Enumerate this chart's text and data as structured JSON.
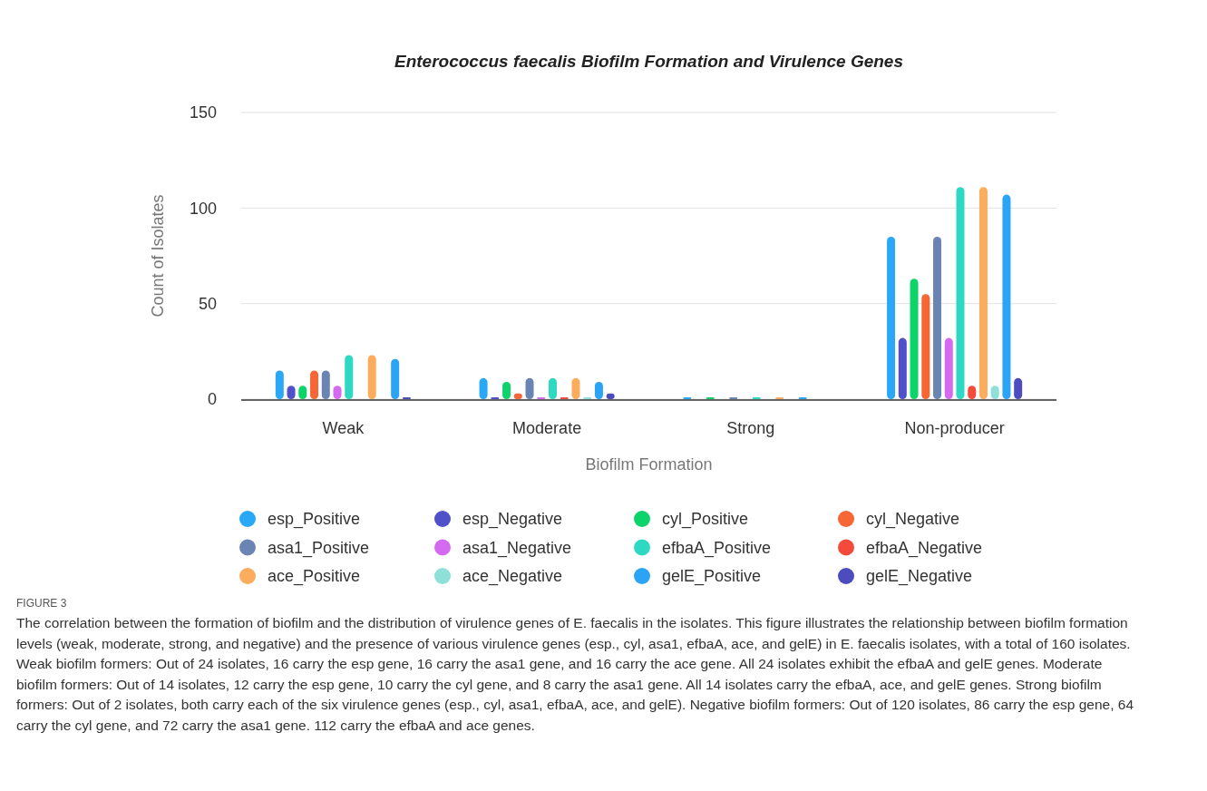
{
  "chart_data": {
    "type": "bar",
    "title": "Enterococcus faecalis Biofilm Formation and Virulence Genes",
    "xlabel": "Biofilm Formation",
    "ylabel": "Count of Isolates",
    "categories": [
      "Weak",
      "Moderate",
      "Strong",
      "Non-producer"
    ],
    "series": [
      {
        "name": "esp_Positive",
        "color": "#2aa8f8",
        "values": [
          15,
          11,
          1,
          85
        ]
      },
      {
        "name": "esp_Negative",
        "color": "#5050c8",
        "values": [
          7,
          1,
          0,
          32
        ]
      },
      {
        "name": "cyl_Positive",
        "color": "#0dd46a",
        "values": [
          7,
          9,
          1,
          63
        ]
      },
      {
        "name": "cyl_Negative",
        "color": "#f76634",
        "values": [
          15,
          3,
          0,
          55
        ]
      },
      {
        "name": "asa1_Positive",
        "color": "#6a84b4",
        "values": [
          15,
          11,
          1,
          85
        ]
      },
      {
        "name": "asa1_Negative",
        "color": "#d36af0",
        "values": [
          7,
          1,
          0,
          32
        ]
      },
      {
        "name": "efbaA_Positive",
        "color": "#2ed9c3",
        "values": [
          23,
          11,
          1,
          111
        ]
      },
      {
        "name": "efbaA_Negative",
        "color": "#f44a3c",
        "values": [
          0,
          1,
          0,
          7
        ]
      },
      {
        "name": "ace_Positive",
        "color": "#fbac5c",
        "values": [
          23,
          11,
          1,
          111
        ]
      },
      {
        "name": "ace_Negative",
        "color": "#8ee0d8",
        "values": [
          0,
          1,
          0,
          7
        ]
      },
      {
        "name": "gelE_Positive",
        "color": "#2ba4f5",
        "values": [
          21,
          9,
          1,
          107
        ]
      },
      {
        "name": "gelE_Negative",
        "color": "#4c4cbf",
        "values": [
          1,
          3,
          0,
          11
        ]
      }
    ],
    "ylim": [
      0,
      150
    ],
    "yticks": [
      0,
      50,
      100,
      150
    ],
    "grid": "y",
    "legend": "bottom",
    "annotations": [
      "FIGURE 3",
      "The correlation between the formation of biofilm and the distribution of virulence genes of E. faecalis in the isolates. This figure illustrates the relationship between biofilm formation levels (weak, moderate, strong, and negative) and the presence of various virulence genes (esp., cyl, asa1, efbaA, ace, and gelE) in E. faecalis isolates, with a total of 160 isolates. Weak biofilm formers: Out of 24 isolates, 16 carry the esp gene, 16 carry the asa1 gene, and 16 carry the ace gene. All 24 isolates exhibit the efbaA and gelE genes. Moderate biofilm formers: Out of 14 isolates, 12 carry the esp gene, 10 carry the cyl gene, and 8 carry the asa1 gene. All 14 isolates carry the efbaA, ace, and gelE genes. Strong biofilm formers: Out of 2 isolates, both carry each of the six virulence genes (esp., cyl, asa1, efbaA, ace, and gelE). Negative biofilm formers: Out of 120 isolates, 86 carry the esp gene, 64 carry the cyl gene, and 72 carry the asa1 gene. 112 carry the efbaA and ace genes."
    ]
  }
}
